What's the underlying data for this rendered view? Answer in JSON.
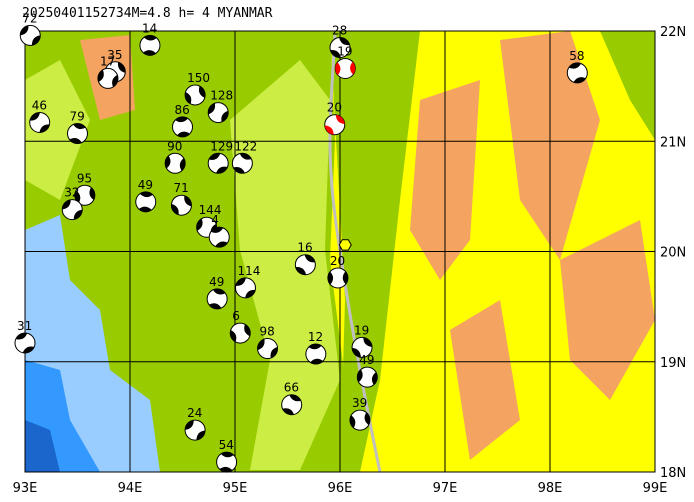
{
  "chart_data": {
    "type": "map",
    "title": "20250401152734M=4.8 h=  4 MYANMAR",
    "xlim": [
      93,
      99
    ],
    "ylim": [
      18,
      22
    ],
    "xticks": [
      {
        "value": 93,
        "label": "93E"
      },
      {
        "value": 94,
        "label": "94E"
      },
      {
        "value": 95,
        "label": "95E"
      },
      {
        "value": 96,
        "label": "96E"
      },
      {
        "value": 97,
        "label": "97E"
      },
      {
        "value": 98,
        "label": "98E"
      },
      {
        "value": 99,
        "label": "99E"
      }
    ],
    "yticks": [
      {
        "value": 18,
        "label": "18N"
      },
      {
        "value": 19,
        "label": "19N"
      },
      {
        "value": 20,
        "label": "20N"
      },
      {
        "value": 21,
        "label": "21N"
      },
      {
        "value": 22,
        "label": "22N"
      }
    ],
    "grid": true,
    "epicenter": {
      "lon": 96.05,
      "lat": 20.06,
      "color": "#ffff00"
    },
    "events": [
      {
        "label": "72",
        "lon": 93.05,
        "lat": 21.96,
        "color": "#000000"
      },
      {
        "label": "14",
        "lon": 94.19,
        "lat": 21.87,
        "color": "#000000"
      },
      {
        "label": "35",
        "lon": 93.86,
        "lat": 21.63,
        "color": "#000000"
      },
      {
        "label": "17",
        "lon": 93.79,
        "lat": 21.57,
        "color": "#000000"
      },
      {
        "label": "58",
        "lon": 98.26,
        "lat": 21.62,
        "color": "#000000"
      },
      {
        "label": "28",
        "lon": 96.0,
        "lat": 21.85,
        "color": "#000000"
      },
      {
        "label": "19",
        "lon": 96.05,
        "lat": 21.66,
        "color": "#ff0000"
      },
      {
        "label": "46",
        "lon": 93.14,
        "lat": 21.17,
        "color": "#000000"
      },
      {
        "label": "79",
        "lon": 93.5,
        "lat": 21.07,
        "color": "#000000"
      },
      {
        "label": "150",
        "lon": 94.62,
        "lat": 21.42,
        "color": "#000000"
      },
      {
        "label": "128",
        "lon": 94.84,
        "lat": 21.26,
        "color": "#000000"
      },
      {
        "label": "86",
        "lon": 94.5,
        "lat": 21.13,
        "color": "#000000"
      },
      {
        "label": "20",
        "lon": 95.95,
        "lat": 21.15,
        "color": "#ff0000"
      },
      {
        "label": "90",
        "lon": 94.43,
        "lat": 20.8,
        "color": "#000000"
      },
      {
        "label": "129",
        "lon": 94.84,
        "lat": 20.8,
        "color": "#000000"
      },
      {
        "label": "122",
        "lon": 95.07,
        "lat": 20.8,
        "color": "#000000"
      },
      {
        "label": "95",
        "lon": 93.57,
        "lat": 20.51,
        "color": "#000000"
      },
      {
        "label": "32",
        "lon": 93.45,
        "lat": 20.38,
        "color": "#000000"
      },
      {
        "label": "49",
        "lon": 94.15,
        "lat": 20.45,
        "color": "#000000"
      },
      {
        "label": "71",
        "lon": 94.49,
        "lat": 20.42,
        "color": "#000000"
      },
      {
        "label": "144",
        "lon": 94.73,
        "lat": 20.22,
        "color": "#000000"
      },
      {
        "label": "4",
        "lon": 94.85,
        "lat": 20.13,
        "color": "#000000"
      },
      {
        "label": "16",
        "lon": 95.67,
        "lat": 19.88,
        "color": "#000000"
      },
      {
        "label": "20",
        "lon": 95.98,
        "lat": 19.76,
        "color": "#000000"
      },
      {
        "label": "114",
        "lon": 95.1,
        "lat": 19.67,
        "color": "#000000"
      },
      {
        "label": "49",
        "lon": 94.83,
        "lat": 19.57,
        "color": "#000000"
      },
      {
        "label": "6",
        "lon": 95.05,
        "lat": 19.26,
        "color": "#000000"
      },
      {
        "label": "98",
        "lon": 95.31,
        "lat": 19.12,
        "color": "#000000"
      },
      {
        "label": "12",
        "lon": 95.77,
        "lat": 19.07,
        "color": "#000000"
      },
      {
        "label": "19",
        "lon": 96.21,
        "lat": 19.13,
        "color": "#000000"
      },
      {
        "label": "49",
        "lon": 96.26,
        "lat": 18.86,
        "color": "#000000"
      },
      {
        "label": "31",
        "lon": 93.0,
        "lat": 19.17,
        "color": "#000000"
      },
      {
        "label": "66",
        "lon": 95.54,
        "lat": 18.61,
        "color": "#000000"
      },
      {
        "label": "39",
        "lon": 96.19,
        "lat": 18.47,
        "color": "#000000"
      },
      {
        "label": "24",
        "lon": 94.62,
        "lat": 18.38,
        "color": "#000000"
      },
      {
        "label": "54",
        "lon": 94.92,
        "lat": 18.09,
        "color": "#000000"
      }
    ]
  }
}
